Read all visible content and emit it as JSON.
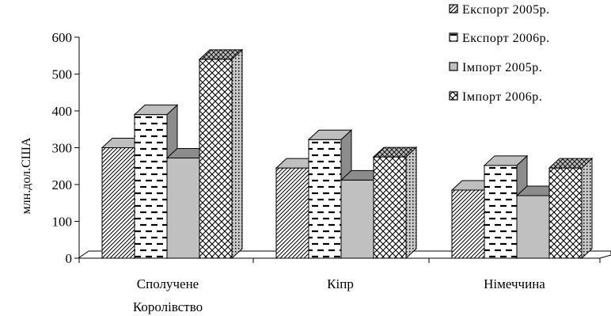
{
  "chart_data": {
    "type": "bar",
    "ylabel": "млн.дол.США",
    "ylim": [
      0,
      600
    ],
    "yticks": [
      "0",
      "100",
      "200",
      "300",
      "400",
      "500",
      "600"
    ],
    "categories": [
      "Сполучене Королівство",
      "Кіпр",
      "Німеччина"
    ],
    "category_lines": [
      [
        "Сполучене",
        "Королівство"
      ],
      [
        "Кіпр"
      ],
      [
        "Німеччина"
      ]
    ],
    "series": [
      {
        "name": "Експорт 2005р.",
        "values": [
          300,
          245,
          185
        ]
      },
      {
        "name": "Експорт 2006р.",
        "values": [
          390,
          322,
          252
        ]
      },
      {
        "name": "Імпорт 2005р.",
        "values": [
          272,
          212,
          170
        ]
      },
      {
        "name": "Імпорт 2006р.",
        "values": [
          540,
          275,
          245
        ]
      }
    ],
    "legend_position": "top-right",
    "three_d": true,
    "grid": false
  }
}
